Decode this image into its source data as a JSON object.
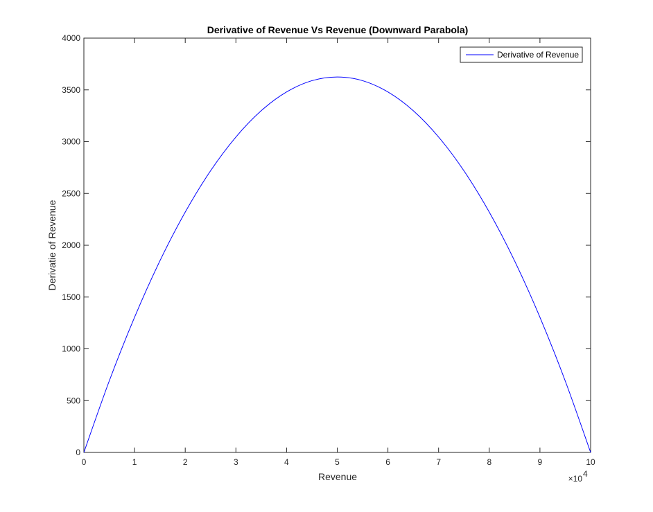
{
  "chart_data": {
    "type": "line",
    "title": "Derivative of Revenue Vs Revenue (Downward Parabola)",
    "xlabel": "Revenue",
    "ylabel": "Derivatie of Revenue",
    "x_exponent_label": "×10",
    "x_exponent_power": "4",
    "xlim": [
      0,
      100000
    ],
    "ylim": [
      0,
      4000
    ],
    "x_ticks": [
      0,
      10000,
      20000,
      30000,
      40000,
      50000,
      60000,
      70000,
      80000,
      90000,
      100000
    ],
    "x_tick_labels": [
      "0",
      "1",
      "2",
      "3",
      "4",
      "5",
      "6",
      "7",
      "8",
      "9",
      "10"
    ],
    "y_ticks": [
      0,
      500,
      1000,
      1500,
      2000,
      2500,
      3000,
      3500,
      4000
    ],
    "y_tick_labels": [
      "0",
      "500",
      "1000",
      "1500",
      "2000",
      "2500",
      "3000",
      "3500",
      "4000"
    ],
    "grid": false,
    "legend_position": "top-right",
    "series": [
      {
        "name": "Derivative of Revenue",
        "color": "#0000ff",
        "x": [
          0,
          5000,
          10000,
          15000,
          20000,
          25000,
          30000,
          35000,
          40000,
          45000,
          50000,
          55000,
          60000,
          65000,
          70000,
          75000,
          80000,
          85000,
          90000,
          95000,
          100000
        ],
        "y": [
          0,
          689,
          1305,
          1849,
          2320,
          2719,
          3045,
          3299,
          3480,
          3589,
          3625,
          3589,
          3480,
          3299,
          3045,
          2719,
          2320,
          1849,
          1305,
          689,
          0
        ]
      }
    ]
  }
}
